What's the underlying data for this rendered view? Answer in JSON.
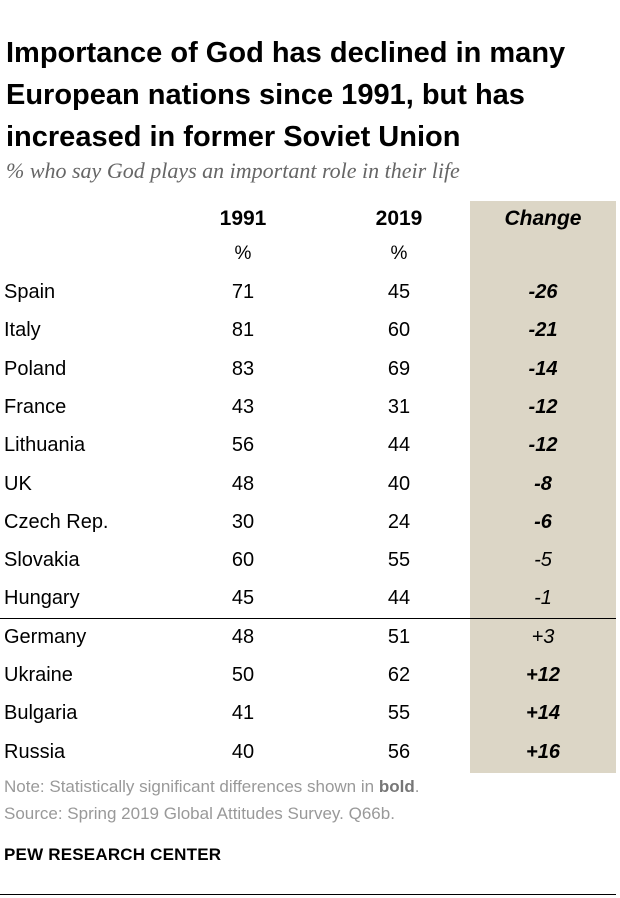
{
  "title": "Importance of God has declined in many European nations since 1991, but has increased in former Soviet Union",
  "subtitle": "% who say God plays an important role in their life",
  "chart_data": {
    "type": "table",
    "columns": [
      "1991",
      "2019",
      "Change"
    ],
    "unit": "%",
    "rows": [
      {
        "country": "Spain",
        "y1991": "71",
        "y2019": "45",
        "change": "-26",
        "significant": true
      },
      {
        "country": "Italy",
        "y1991": "81",
        "y2019": "60",
        "change": "-21",
        "significant": true
      },
      {
        "country": "Poland",
        "y1991": "83",
        "y2019": "69",
        "change": "-14",
        "significant": true
      },
      {
        "country": "France",
        "y1991": "43",
        "y2019": "31",
        "change": "-12",
        "significant": true
      },
      {
        "country": "Lithuania",
        "y1991": "56",
        "y2019": "44",
        "change": "-12",
        "significant": true
      },
      {
        "country": "UK",
        "y1991": "48",
        "y2019": "40",
        "change": "-8",
        "significant": true
      },
      {
        "country": "Czech Rep.",
        "y1991": "30",
        "y2019": "24",
        "change": "-6",
        "significant": true
      },
      {
        "country": "Slovakia",
        "y1991": "60",
        "y2019": "55",
        "change": "-5",
        "significant": false
      },
      {
        "country": "Hungary",
        "y1991": "45",
        "y2019": "44",
        "change": "-1",
        "significant": false
      },
      {
        "country": "Germany",
        "y1991": "48",
        "y2019": "51",
        "change": "+3",
        "significant": false
      },
      {
        "country": "Ukraine",
        "y1991": "50",
        "y2019": "62",
        "change": "+12",
        "significant": true
      },
      {
        "country": "Bulgaria",
        "y1991": "41",
        "y2019": "55",
        "change": "+14",
        "significant": true
      },
      {
        "country": "Russia",
        "y1991": "40",
        "y2019": "56",
        "change": "+16",
        "significant": true
      }
    ]
  },
  "note": {
    "prefix": "Note: Statistically significant differences shown in ",
    "bold": "bold",
    "suffix": "."
  },
  "source": "Source: Spring 2019 Global Attitudes Survey. Q66b.",
  "footer": "PEW RESEARCH CENTER",
  "colors": {
    "change_column_bg": "#dcd6c6",
    "note_text": "#999999"
  }
}
